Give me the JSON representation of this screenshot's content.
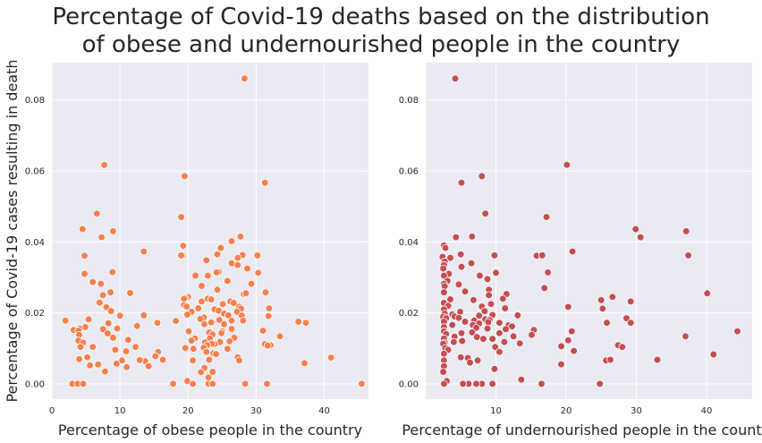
{
  "title_lines": [
    "Percentage of Covid-19 deaths based on the distribution",
    "of obese and undernourished people in the country"
  ],
  "chart_data": [
    {
      "type": "scatter",
      "xlabel": "Percentage of obese people in the country",
      "ylabel": "Percentage of Covid-19 cases resulting in death",
      "xlim": [
        0,
        46.5
      ],
      "ylim": [
        -0.0043,
        0.0905
      ],
      "xticks": [
        "0",
        "10",
        "20",
        "30",
        "40"
      ],
      "yticks": [
        "0.00",
        "0.02",
        "0.04",
        "0.06",
        "0.08"
      ],
      "xtick_values": [
        0,
        10,
        20,
        30,
        40
      ],
      "ytick_values": [
        0,
        0.02,
        0.04,
        0.06,
        0.08
      ],
      "grid": true,
      "color": "#f7814e",
      "points": [
        [
          28.3,
          0.086
        ],
        [
          7.7,
          0.0617
        ],
        [
          19.5,
          0.0585
        ],
        [
          31.3,
          0.0567
        ],
        [
          6.6,
          0.048
        ],
        [
          19.0,
          0.047
        ],
        [
          9.0,
          0.043
        ],
        [
          4.5,
          0.0436
        ],
        [
          7.3,
          0.0413
        ],
        [
          27.7,
          0.0415
        ],
        [
          26.4,
          0.0402
        ],
        [
          19.3,
          0.0389
        ],
        [
          13.5,
          0.0373
        ],
        [
          24.8,
          0.0383
        ],
        [
          19.2,
          0.0362
        ],
        [
          19.0,
          0.0362
        ],
        [
          24.3,
          0.0365
        ],
        [
          30.2,
          0.0362
        ],
        [
          28.0,
          0.0363
        ],
        [
          4.8,
          0.0361
        ],
        [
          27.3,
          0.0355
        ],
        [
          22.7,
          0.0348
        ],
        [
          26.4,
          0.034
        ],
        [
          27.3,
          0.0335
        ],
        [
          28.7,
          0.0325
        ],
        [
          24.5,
          0.0315
        ],
        [
          24.2,
          0.0314
        ],
        [
          8.9,
          0.0315
        ],
        [
          4.8,
          0.031
        ],
        [
          21.1,
          0.0305
        ],
        [
          22.9,
          0.0305
        ],
        [
          30.3,
          0.0313
        ],
        [
          25.8,
          0.029
        ],
        [
          29.3,
          0.0282
        ],
        [
          6.0,
          0.0287
        ],
        [
          7.2,
          0.0282
        ],
        [
          22.0,
          0.0276
        ],
        [
          8.6,
          0.0258
        ],
        [
          11.5,
          0.0256
        ],
        [
          24.3,
          0.0265
        ],
        [
          28.2,
          0.0253
        ],
        [
          31.4,
          0.0258
        ],
        [
          28.5,
          0.0255
        ],
        [
          7.5,
          0.025
        ],
        [
          20.0,
          0.0245
        ],
        [
          19.6,
          0.0242
        ],
        [
          22.9,
          0.024
        ],
        [
          19.4,
          0.024
        ],
        [
          23.4,
          0.0238
        ],
        [
          26.2,
          0.0232
        ],
        [
          7.0,
          0.0229
        ],
        [
          22.0,
          0.0232
        ],
        [
          26.7,
          0.0228
        ],
        [
          25.1,
          0.0225
        ],
        [
          19.4,
          0.0222
        ],
        [
          27.5,
          0.0217
        ],
        [
          8.0,
          0.0216
        ],
        [
          19.8,
          0.0218
        ],
        [
          21.5,
          0.0213
        ],
        [
          31.9,
          0.0213
        ],
        [
          27.8,
          0.0212
        ],
        [
          23.9,
          0.021
        ],
        [
          8.7,
          0.0205
        ],
        [
          24.5,
          0.0206
        ],
        [
          27.2,
          0.0203
        ],
        [
          20.5,
          0.0203
        ],
        [
          25.3,
          0.0198
        ],
        [
          19.9,
          0.0195
        ],
        [
          10.0,
          0.0192
        ],
        [
          13.5,
          0.0193
        ],
        [
          25.9,
          0.0193
        ],
        [
          27.9,
          0.0192
        ],
        [
          31.8,
          0.0191
        ],
        [
          22.3,
          0.0187
        ],
        [
          21.8,
          0.0183
        ],
        [
          5.4,
          0.0182
        ],
        [
          24.6,
          0.018
        ],
        [
          26.4,
          0.0178
        ],
        [
          18.2,
          0.0177
        ],
        [
          28.1,
          0.0178
        ],
        [
          2.0,
          0.0178
        ],
        [
          36.2,
          0.0175
        ],
        [
          37.3,
          0.0172
        ],
        [
          23.4,
          0.0173
        ],
        [
          15.5,
          0.0172
        ],
        [
          8.3,
          0.0171
        ],
        [
          25.3,
          0.0168
        ],
        [
          22.4,
          0.0168
        ],
        [
          12.5,
          0.0163
        ],
        [
          4.9,
          0.016
        ],
        [
          9.6,
          0.0156
        ],
        [
          4.1,
          0.0156
        ],
        [
          26.4,
          0.0155
        ],
        [
          3.6,
          0.0152
        ],
        [
          3.2,
          0.0152
        ],
        [
          7.5,
          0.0154
        ],
        [
          31.0,
          0.015
        ],
        [
          3.9,
          0.015
        ],
        [
          20.1,
          0.0148
        ],
        [
          25.0,
          0.0148
        ],
        [
          23.1,
          0.0145
        ],
        [
          24.9,
          0.0143
        ],
        [
          8.2,
          0.0142
        ],
        [
          23.6,
          0.0139
        ],
        [
          33.5,
          0.0134
        ],
        [
          4.0,
          0.0138
        ],
        [
          9.0,
          0.013
        ],
        [
          23.2,
          0.0128
        ],
        [
          26.8,
          0.013
        ],
        [
          21.0,
          0.0128
        ],
        [
          11.2,
          0.0124
        ],
        [
          3.9,
          0.0122
        ],
        [
          20.5,
          0.0122
        ],
        [
          26.1,
          0.012
        ],
        [
          22.5,
          0.0117
        ],
        [
          24.7,
          0.0118
        ],
        [
          4.6,
          0.0116
        ],
        [
          23.9,
          0.0112
        ],
        [
          23.5,
          0.0113
        ],
        [
          31.3,
          0.0112
        ],
        [
          22.8,
          0.0109
        ],
        [
          32.1,
          0.0109
        ],
        [
          31.7,
          0.0108
        ],
        [
          12.3,
          0.0104
        ],
        [
          22.3,
          0.0102
        ],
        [
          19.6,
          0.0101
        ],
        [
          25.8,
          0.0099
        ],
        [
          20.8,
          0.0099
        ],
        [
          6.0,
          0.0104
        ],
        [
          4.2,
          0.0104
        ],
        [
          9.3,
          0.0096
        ],
        [
          10.9,
          0.0092
        ],
        [
          15.6,
          0.009
        ],
        [
          22.7,
          0.009
        ],
        [
          23.7,
          0.0086
        ],
        [
          24.1,
          0.0084
        ],
        [
          15.2,
          0.0078
        ],
        [
          41.0,
          0.0074
        ],
        [
          5.2,
          0.0075
        ],
        [
          27.3,
          0.0075
        ],
        [
          4.0,
          0.007
        ],
        [
          16.3,
          0.0068
        ],
        [
          13.7,
          0.0064
        ],
        [
          12.9,
          0.0067
        ],
        [
          27.5,
          0.0066
        ],
        [
          10.3,
          0.0066
        ],
        [
          20.7,
          0.0066
        ],
        [
          23.1,
          0.0068
        ],
        [
          9.5,
          0.0057
        ],
        [
          37.1,
          0.0058
        ],
        [
          6.8,
          0.0055
        ],
        [
          5.6,
          0.0052
        ],
        [
          14.2,
          0.005
        ],
        [
          11.0,
          0.0047
        ],
        [
          22.4,
          0.0045
        ],
        [
          7.8,
          0.0035
        ],
        [
          23.6,
          0.0034
        ],
        [
          21.9,
          0.0033
        ],
        [
          23.0,
          0.0018
        ],
        [
          19.9,
          0.0008
        ],
        [
          20.7,
          0.0
        ],
        [
          3.0,
          0.0
        ],
        [
          17.8,
          0.0
        ],
        [
          3.8,
          0.0
        ],
        [
          23.0,
          0.0
        ],
        [
          28.4,
          0.0
        ],
        [
          45.5,
          0.0
        ],
        [
          23.6,
          0.0
        ],
        [
          31.6,
          0.0
        ],
        [
          4.6,
          0.0
        ]
      ]
    },
    {
      "type": "scatter",
      "xlabel": "Percentage of undernourished people in the country",
      "ylabel": "",
      "xlim": [
        0,
        46.5
      ],
      "ylim": [
        -0.0043,
        0.0905
      ],
      "xticks": [
        "10",
        "20",
        "30",
        "40"
      ],
      "yticks": [
        "0.00",
        "0.02",
        "0.04",
        "0.06",
        "0.08"
      ],
      "xtick_values": [
        10,
        20,
        30,
        40
      ],
      "ytick_values": [
        0,
        0.02,
        0.04,
        0.06,
        0.08
      ],
      "grid": true,
      "color": "#c44e52",
      "points": [
        [
          4.2,
          0.086
        ],
        [
          20.1,
          0.0617
        ],
        [
          8.0,
          0.0585
        ],
        [
          5.1,
          0.0567
        ],
        [
          8.5,
          0.048
        ],
        [
          17.2,
          0.047
        ],
        [
          29.9,
          0.0436
        ],
        [
          37.1,
          0.043
        ],
        [
          4.3,
          0.0413
        ],
        [
          30.6,
          0.0413
        ],
        [
          6.6,
          0.0415
        ],
        [
          2.6,
          0.039
        ],
        [
          20.9,
          0.0373
        ],
        [
          2.8,
          0.0383
        ],
        [
          5.0,
          0.0365
        ],
        [
          9.8,
          0.0362
        ],
        [
          37.4,
          0.0362
        ],
        [
          15.8,
          0.0361
        ],
        [
          3.5,
          0.0355
        ],
        [
          2.4,
          0.0358
        ],
        [
          16.6,
          0.0362
        ],
        [
          2.7,
          0.0345
        ],
        [
          6.5,
          0.034
        ],
        [
          2.6,
          0.0335
        ],
        [
          5.1,
          0.033
        ],
        [
          2.5,
          0.0325
        ],
        [
          17.4,
          0.0314
        ],
        [
          3.3,
          0.031
        ],
        [
          2.6,
          0.0305
        ],
        [
          7.7,
          0.0305
        ],
        [
          10.0,
          0.0313
        ],
        [
          8.8,
          0.0295
        ],
        [
          3.1,
          0.029
        ],
        [
          2.6,
          0.0282
        ],
        [
          4.7,
          0.028
        ],
        [
          2.7,
          0.0275
        ],
        [
          16.9,
          0.027
        ],
        [
          9.0,
          0.0265
        ],
        [
          5.6,
          0.026
        ],
        [
          2.6,
          0.0258
        ],
        [
          40.1,
          0.0255
        ],
        [
          11.5,
          0.0253
        ],
        [
          9.0,
          0.025
        ],
        [
          26.6,
          0.0245
        ],
        [
          11.0,
          0.024
        ],
        [
          3.5,
          0.0238
        ],
        [
          6.8,
          0.0236
        ],
        [
          25.0,
          0.0236
        ],
        [
          29.2,
          0.0232
        ],
        [
          2.6,
          0.0228
        ],
        [
          9.3,
          0.0225
        ],
        [
          3.2,
          0.022
        ],
        [
          8.0,
          0.0218
        ],
        [
          20.3,
          0.0217
        ],
        [
          11.3,
          0.0213
        ],
        [
          25.2,
          0.0212
        ],
        [
          2.6,
          0.021
        ],
        [
          8.4,
          0.0205
        ],
        [
          4.9,
          0.0203
        ],
        [
          2.7,
          0.0198
        ],
        [
          3.8,
          0.0196
        ],
        [
          9.5,
          0.0194
        ],
        [
          4.1,
          0.019
        ],
        [
          13.1,
          0.0193
        ],
        [
          7.6,
          0.0192
        ],
        [
          2.5,
          0.0189
        ],
        [
          4.7,
          0.0186
        ],
        [
          2.9,
          0.0185
        ],
        [
          28.6,
          0.0185
        ],
        [
          8.5,
          0.0182
        ],
        [
          9.1,
          0.018
        ],
        [
          6.9,
          0.0178
        ],
        [
          2.6,
          0.0175
        ],
        [
          8.9,
          0.0174
        ],
        [
          5.6,
          0.0175
        ],
        [
          10.5,
          0.0172
        ],
        [
          25.8,
          0.0172
        ],
        [
          7.6,
          0.017
        ],
        [
          29.2,
          0.0172
        ],
        [
          3.8,
          0.0166
        ],
        [
          6.7,
          0.0166
        ],
        [
          11.8,
          0.0165
        ],
        [
          12.3,
          0.0162
        ],
        [
          2.6,
          0.016
        ],
        [
          7.2,
          0.0158
        ],
        [
          8.8,
          0.0156
        ],
        [
          11.4,
          0.0154
        ],
        [
          15.4,
          0.0152
        ],
        [
          44.4,
          0.0148
        ],
        [
          2.6,
          0.0148
        ],
        [
          20.8,
          0.0148
        ],
        [
          6.6,
          0.0145
        ],
        [
          5.1,
          0.0143
        ],
        [
          10.5,
          0.0143
        ],
        [
          2.9,
          0.014
        ],
        [
          37.0,
          0.0134
        ],
        [
          15.1,
          0.0138
        ],
        [
          12.5,
          0.0134
        ],
        [
          4.1,
          0.0133
        ],
        [
          7.3,
          0.0132
        ],
        [
          2.6,
          0.0128
        ],
        [
          9.5,
          0.0127
        ],
        [
          8.2,
          0.0127
        ],
        [
          20.3,
          0.0123
        ],
        [
          5.2,
          0.0121
        ],
        [
          11.2,
          0.0118
        ],
        [
          4.0,
          0.0118
        ],
        [
          2.7,
          0.0116
        ],
        [
          13.4,
          0.0114
        ],
        [
          2.5,
          0.0113
        ],
        [
          19.3,
          0.0106
        ],
        [
          27.4,
          0.0109
        ],
        [
          28.0,
          0.0104
        ],
        [
          9.9,
          0.0104
        ],
        [
          2.8,
          0.0101
        ],
        [
          3.2,
          0.0096
        ],
        [
          10.5,
          0.009
        ],
        [
          21.1,
          0.0093
        ],
        [
          41.0,
          0.0083
        ],
        [
          2.6,
          0.0085
        ],
        [
          5.0,
          0.0075
        ],
        [
          6.0,
          0.0073
        ],
        [
          33.0,
          0.0068
        ],
        [
          25.7,
          0.0066
        ],
        [
          26.3,
          0.0068
        ],
        [
          7.4,
          0.0066
        ],
        [
          2.6,
          0.0066
        ],
        [
          6.3,
          0.006
        ],
        [
          19.3,
          0.0055
        ],
        [
          2.6,
          0.005
        ],
        [
          9.8,
          0.0042
        ],
        [
          2.5,
          0.0034
        ],
        [
          13.6,
          0.0012
        ],
        [
          3.0,
          0.0008
        ],
        [
          2.6,
          0.0
        ],
        [
          6.1,
          0.0
        ],
        [
          5.3,
          0.0
        ],
        [
          8.0,
          0.0
        ],
        [
          7.2,
          0.0
        ],
        [
          9.5,
          0.0
        ],
        [
          16.5,
          0.0
        ],
        [
          24.8,
          0.0
        ]
      ]
    }
  ]
}
